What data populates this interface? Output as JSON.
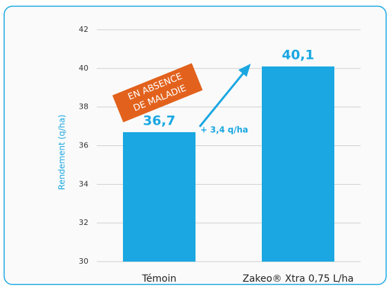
{
  "chart_data": {
    "type": "bar",
    "categories": [
      "Témoin",
      "Zakeo® Xtra 0,75 L/ha"
    ],
    "values": [
      36.7,
      40.1
    ],
    "value_labels": [
      "36,7",
      "40,1"
    ],
    "color": "#1aa7e2",
    "y_label": "Rendement (q/ha)",
    "annotations": [
      "EN ABSENCE",
      "DE MALADIE",
      "+ 3,4 q/ha"
    ],
    "ylim": [
      30,
      42
    ],
    "yticks": [
      30,
      32,
      34,
      36,
      38,
      40,
      42
    ],
    "grid": true
  }
}
